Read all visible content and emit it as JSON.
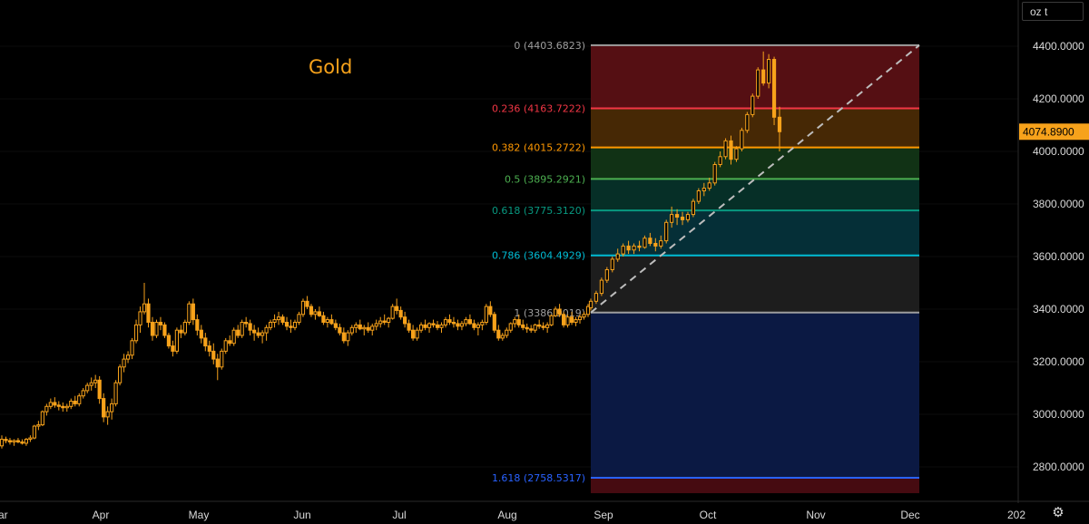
{
  "chart_data": {
    "type": "candlestick",
    "title": "Gold",
    "unit": "oz t",
    "last_price": "4074.8900",
    "ylim": [
      2700,
      4500
    ],
    "y_ticks": [
      "4400.0000",
      "4200.0000",
      "4000.0000",
      "3800.0000",
      "3600.0000",
      "3400.0000",
      "3200.0000",
      "3000.0000",
      "2800.0000"
    ],
    "y_tick_values": [
      4400,
      4200,
      4000,
      3800,
      3600,
      3400,
      3200,
      3000,
      2800
    ],
    "x_ticks": [
      "ar",
      "Apr",
      "May",
      "Jun",
      "Jul",
      "Aug",
      "Sep",
      "Oct",
      "Nov",
      "Dec",
      "202"
    ],
    "x_tick_days": [
      -5,
      32,
      62,
      93,
      123,
      154,
      185,
      215,
      246,
      276,
      307
    ],
    "fibonacci": [
      {
        "ratio": "0",
        "price": 4403.6823,
        "label": "0 (4403.6823)",
        "color": "#9e9e9e"
      },
      {
        "ratio": "0.236",
        "price": 4163.7222,
        "label": "0.236 (4163.7222)",
        "color": "#f23645"
      },
      {
        "ratio": "0.382",
        "price": 4015.2722,
        "label": "0.382 (4015.2722)",
        "color": "#ff9800"
      },
      {
        "ratio": "0.5",
        "price": 3895.2921,
        "label": "0.5 (3895.2921)",
        "color": "#4caf50"
      },
      {
        "ratio": "0.618",
        "price": 3775.312,
        "label": "0.618 (3775.3120)",
        "color": "#089981"
      },
      {
        "ratio": "0.786",
        "price": 3604.4929,
        "label": "0.786 (3604.4929)",
        "color": "#00bcd4"
      },
      {
        "ratio": "1",
        "price": 3386.9019,
        "label": "1 (3386.9019)",
        "color": "#9e9e9e"
      },
      {
        "ratio": "1.618",
        "price": 2758.5317,
        "label": "1.618 (2758.5317)",
        "color": "#2962ff"
      }
    ],
    "fib_zones": [
      {
        "from": 4403.6823,
        "to": 4163.7222,
        "color": "#5a1014"
      },
      {
        "from": 4163.7222,
        "to": 4015.2722,
        "color": "#4a2a05"
      },
      {
        "from": 4015.2722,
        "to": 3895.2921,
        "color": "#123516"
      },
      {
        "from": 3895.2921,
        "to": 3775.312,
        "color": "#063229"
      },
      {
        "from": 3775.312,
        "to": 3604.4929,
        "color": "#05323a"
      },
      {
        "from": 3604.4929,
        "to": 3386.9019,
        "color": "#1f1f1f"
      },
      {
        "from": 3386.9019,
        "to": 2758.5317,
        "color": "#0c1a47"
      },
      {
        "from": 2758.5317,
        "to": 2700,
        "color": "#4a0c12"
      }
    ],
    "fib_range_days": [
      185,
      278
    ],
    "trend_line": {
      "from_day": 185,
      "from_price": 3386.9019,
      "to_day": 278,
      "to_price": 4403.6823
    },
    "candles": [
      [
        0,
        2880,
        2920,
        2870,
        2905
      ],
      [
        1,
        2905,
        2915,
        2890,
        2900
      ],
      [
        2,
        2900,
        2910,
        2885,
        2895
      ],
      [
        3,
        2895,
        2905,
        2880,
        2900
      ],
      [
        4,
        2900,
        2910,
        2890,
        2895
      ],
      [
        5,
        2895,
        2905,
        2885,
        2890
      ],
      [
        6,
        2890,
        2910,
        2880,
        2905
      ],
      [
        7,
        2905,
        2920,
        2895,
        2910
      ],
      [
        8,
        2910,
        2960,
        2905,
        2955
      ],
      [
        9,
        2955,
        2975,
        2940,
        2960
      ],
      [
        10,
        2960,
        3015,
        2955,
        3010
      ],
      [
        11,
        3010,
        3040,
        2995,
        3030
      ],
      [
        12,
        3030,
        3060,
        3020,
        3045
      ],
      [
        13,
        3045,
        3065,
        3025,
        3035
      ],
      [
        14,
        3035,
        3050,
        3015,
        3030
      ],
      [
        15,
        3030,
        3045,
        3010,
        3025
      ],
      [
        16,
        3025,
        3040,
        3010,
        3030
      ],
      [
        17,
        3030,
        3060,
        3020,
        3050
      ],
      [
        18,
        3050,
        3070,
        3030,
        3040
      ],
      [
        19,
        3040,
        3080,
        3030,
        3070
      ],
      [
        20,
        3070,
        3100,
        3060,
        3090
      ],
      [
        21,
        3090,
        3120,
        3080,
        3110
      ],
      [
        22,
        3110,
        3140,
        3090,
        3120
      ],
      [
        23,
        3120,
        3150,
        3100,
        3130
      ],
      [
        24,
        3130,
        3145,
        3040,
        3060
      ],
      [
        25,
        3060,
        3080,
        2970,
        2990
      ],
      [
        26,
        2990,
        3030,
        2960,
        3010
      ],
      [
        27,
        3010,
        3060,
        2980,
        3040
      ],
      [
        28,
        3040,
        3130,
        3030,
        3120
      ],
      [
        29,
        3120,
        3190,
        3110,
        3180
      ],
      [
        30,
        3180,
        3230,
        3160,
        3210
      ],
      [
        31,
        3210,
        3240,
        3195,
        3225
      ],
      [
        32,
        3225,
        3290,
        3210,
        3280
      ],
      [
        33,
        3280,
        3360,
        3270,
        3340
      ],
      [
        34,
        3340,
        3410,
        3310,
        3390
      ],
      [
        35,
        3390,
        3500,
        3380,
        3420
      ],
      [
        36,
        3420,
        3440,
        3330,
        3350
      ],
      [
        37,
        3350,
        3370,
        3280,
        3300
      ],
      [
        38,
        3300,
        3360,
        3290,
        3350
      ],
      [
        39,
        3350,
        3370,
        3320,
        3340
      ],
      [
        40,
        3340,
        3350,
        3290,
        3300
      ],
      [
        41,
        3300,
        3310,
        3250,
        3260
      ],
      [
        42,
        3260,
        3280,
        3220,
        3240
      ],
      [
        43,
        3240,
        3330,
        3230,
        3320
      ],
      [
        44,
        3320,
        3340,
        3290,
        3310
      ],
      [
        45,
        3310,
        3360,
        3300,
        3350
      ],
      [
        46,
        3350,
        3430,
        3340,
        3420
      ],
      [
        47,
        3420,
        3440,
        3340,
        3360
      ],
      [
        48,
        3360,
        3380,
        3300,
        3320
      ],
      [
        49,
        3320,
        3340,
        3270,
        3290
      ],
      [
        50,
        3290,
        3310,
        3240,
        3260
      ],
      [
        51,
        3260,
        3280,
        3220,
        3240
      ],
      [
        52,
        3240,
        3270,
        3190,
        3210
      ],
      [
        53,
        3210,
        3230,
        3130,
        3180
      ],
      [
        54,
        3180,
        3250,
        3170,
        3240
      ],
      [
        55,
        3240,
        3290,
        3230,
        3280
      ],
      [
        56,
        3280,
        3300,
        3260,
        3270
      ],
      [
        57,
        3270,
        3330,
        3260,
        3320
      ],
      [
        58,
        3320,
        3340,
        3290,
        3300
      ],
      [
        59,
        3300,
        3360,
        3290,
        3350
      ],
      [
        60,
        3350,
        3370,
        3330,
        3345
      ],
      [
        61,
        3345,
        3360,
        3300,
        3320
      ],
      [
        62,
        3320,
        3340,
        3280,
        3310
      ],
      [
        63,
        3310,
        3330,
        3290,
        3300
      ],
      [
        64,
        3300,
        3320,
        3270,
        3310
      ],
      [
        65,
        3310,
        3340,
        3280,
        3330
      ],
      [
        66,
        3330,
        3360,
        3320,
        3350
      ],
      [
        67,
        3350,
        3380,
        3330,
        3360
      ],
      [
        68,
        3360,
        3390,
        3340,
        3370
      ],
      [
        69,
        3370,
        3380,
        3340,
        3350
      ],
      [
        70,
        3350,
        3370,
        3320,
        3335
      ],
      [
        71,
        3335,
        3360,
        3310,
        3330
      ],
      [
        72,
        3330,
        3360,
        3320,
        3350
      ],
      [
        73,
        3350,
        3390,
        3340,
        3380
      ],
      [
        74,
        3380,
        3440,
        3370,
        3430
      ],
      [
        75,
        3430,
        3450,
        3400,
        3410
      ],
      [
        76,
        3410,
        3420,
        3370,
        3380
      ],
      [
        77,
        3380,
        3400,
        3360,
        3390
      ],
      [
        78,
        3390,
        3410,
        3370,
        3375
      ],
      [
        79,
        3375,
        3390,
        3340,
        3350
      ],
      [
        80,
        3350,
        3370,
        3330,
        3360
      ],
      [
        81,
        3360,
        3380,
        3340,
        3345
      ],
      [
        82,
        3345,
        3360,
        3320,
        3330
      ],
      [
        83,
        3330,
        3345,
        3300,
        3310
      ],
      [
        84,
        3310,
        3330,
        3270,
        3280
      ],
      [
        85,
        3280,
        3320,
        3260,
        3310
      ],
      [
        86,
        3310,
        3340,
        3300,
        3330
      ],
      [
        87,
        3330,
        3350,
        3310,
        3340
      ],
      [
        88,
        3340,
        3360,
        3320,
        3325
      ],
      [
        89,
        3325,
        3340,
        3300,
        3330
      ],
      [
        90,
        3330,
        3350,
        3310,
        3320
      ],
      [
        91,
        3320,
        3345,
        3300,
        3335
      ],
      [
        92,
        3335,
        3360,
        3320,
        3345
      ],
      [
        93,
        3345,
        3370,
        3330,
        3355
      ],
      [
        94,
        3355,
        3380,
        3340,
        3350
      ],
      [
        95,
        3350,
        3370,
        3330,
        3365
      ],
      [
        96,
        3365,
        3420,
        3360,
        3410
      ],
      [
        97,
        3410,
        3440,
        3380,
        3395
      ],
      [
        98,
        3395,
        3410,
        3360,
        3370
      ],
      [
        99,
        3370,
        3390,
        3330,
        3345
      ],
      [
        100,
        3345,
        3360,
        3310,
        3320
      ],
      [
        101,
        3320,
        3340,
        3280,
        3290
      ],
      [
        102,
        3290,
        3330,
        3280,
        3320
      ],
      [
        103,
        3320,
        3350,
        3310,
        3340
      ],
      [
        104,
        3340,
        3360,
        3320,
        3330
      ],
      [
        105,
        3330,
        3350,
        3310,
        3345
      ],
      [
        106,
        3345,
        3360,
        3330,
        3340
      ],
      [
        107,
        3340,
        3355,
        3320,
        3330
      ],
      [
        108,
        3330,
        3350,
        3310,
        3340
      ],
      [
        109,
        3340,
        3370,
        3330,
        3360
      ],
      [
        110,
        3360,
        3380,
        3340,
        3350
      ],
      [
        111,
        3350,
        3370,
        3330,
        3345
      ],
      [
        112,
        3345,
        3360,
        3320,
        3335
      ],
      [
        113,
        3335,
        3355,
        3320,
        3345
      ],
      [
        114,
        3345,
        3370,
        3335,
        3360
      ],
      [
        115,
        3360,
        3380,
        3340,
        3345
      ],
      [
        116,
        3345,
        3360,
        3320,
        3330
      ],
      [
        117,
        3330,
        3350,
        3300,
        3340
      ],
      [
        118,
        3340,
        3360,
        3320,
        3350
      ],
      [
        119,
        3350,
        3420,
        3340,
        3410
      ],
      [
        120,
        3410,
        3430,
        3370,
        3380
      ],
      [
        121,
        3380,
        3390,
        3310,
        3320
      ],
      [
        122,
        3320,
        3340,
        3280,
        3290
      ],
      [
        123,
        3290,
        3310,
        3280,
        3300
      ],
      [
        124,
        3300,
        3330,
        3290,
        3320
      ],
      [
        125,
        3320,
        3350,
        3310,
        3345
      ],
      [
        126,
        3345,
        3370,
        3330,
        3360
      ],
      [
        127,
        3360,
        3380,
        3330,
        3340
      ],
      [
        128,
        3340,
        3360,
        3320,
        3330
      ],
      [
        129,
        3330,
        3345,
        3310,
        3325
      ],
      [
        130,
        3325,
        3340,
        3310,
        3320
      ],
      [
        131,
        3320,
        3345,
        3310,
        3340
      ],
      [
        132,
        3340,
        3360,
        3325,
        3335
      ],
      [
        133,
        3335,
        3350,
        3320,
        3330
      ],
      [
        134,
        3330,
        3350,
        3310,
        3340
      ],
      [
        135,
        3340,
        3380,
        3335,
        3375
      ],
      [
        136,
        3375,
        3410,
        3370,
        3400
      ],
      [
        137,
        3400,
        3420,
        3370,
        3380
      ],
      [
        138,
        3380,
        3390,
        3330,
        3340
      ],
      [
        139,
        3340,
        3380,
        3330,
        3370
      ],
      [
        140,
        3370,
        3390,
        3340,
        3350
      ],
      [
        141,
        3350,
        3370,
        3335,
        3360
      ],
      [
        142,
        3360,
        3380,
        3345,
        3370
      ],
      [
        143,
        3370,
        3390,
        3360,
        3380
      ],
      [
        144,
        3380,
        3420,
        3370,
        3410
      ]
    ],
    "candles_sep_oct": [
      [
        145,
        3405,
        3440,
        3395,
        3430
      ],
      [
        146,
        3430,
        3470,
        3420,
        3460
      ],
      [
        147,
        3460,
        3520,
        3450,
        3510
      ],
      [
        148,
        3510,
        3560,
        3500,
        3550
      ],
      [
        149,
        3550,
        3600,
        3540,
        3590
      ],
      [
        150,
        3590,
        3630,
        3580,
        3610
      ],
      [
        151,
        3610,
        3650,
        3600,
        3640
      ],
      [
        152,
        3640,
        3660,
        3610,
        3625
      ],
      [
        153,
        3625,
        3650,
        3610,
        3640
      ],
      [
        154,
        3640,
        3660,
        3620,
        3635
      ],
      [
        155,
        3635,
        3680,
        3630,
        3670
      ],
      [
        156,
        3670,
        3690,
        3640,
        3650
      ],
      [
        157,
        3650,
        3670,
        3620,
        3640
      ],
      [
        158,
        3640,
        3680,
        3630,
        3660
      ],
      [
        159,
        3660,
        3740,
        3650,
        3730
      ],
      [
        160,
        3730,
        3790,
        3710,
        3760
      ],
      [
        161,
        3760,
        3780,
        3720,
        3750
      ],
      [
        162,
        3750,
        3770,
        3720,
        3740
      ],
      [
        163,
        3740,
        3770,
        3730,
        3760
      ],
      [
        164,
        3760,
        3820,
        3750,
        3810
      ],
      [
        165,
        3810,
        3860,
        3800,
        3850
      ],
      [
        166,
        3850,
        3880,
        3830,
        3860
      ],
      [
        167,
        3860,
        3900,
        3850,
        3880
      ],
      [
        168,
        3880,
        3960,
        3870,
        3950
      ],
      [
        169,
        3950,
        4000,
        3940,
        3980
      ],
      [
        170,
        3980,
        4050,
        3970,
        4040
      ],
      [
        171,
        4040,
        4060,
        3950,
        3970
      ],
      [
        172,
        3970,
        4020,
        3960,
        4010
      ],
      [
        173,
        4010,
        4090,
        4000,
        4080
      ],
      [
        174,
        4080,
        4150,
        4070,
        4140
      ],
      [
        175,
        4140,
        4220,
        4130,
        4210
      ],
      [
        176,
        4210,
        4320,
        4200,
        4310
      ],
      [
        177,
        4310,
        4380,
        4250,
        4260
      ],
      [
        178,
        4260,
        4370,
        4240,
        4350
      ],
      [
        179,
        4350,
        4360,
        4100,
        4130
      ],
      [
        180,
        4130,
        4170,
        4000,
        4075
      ]
    ]
  }
}
